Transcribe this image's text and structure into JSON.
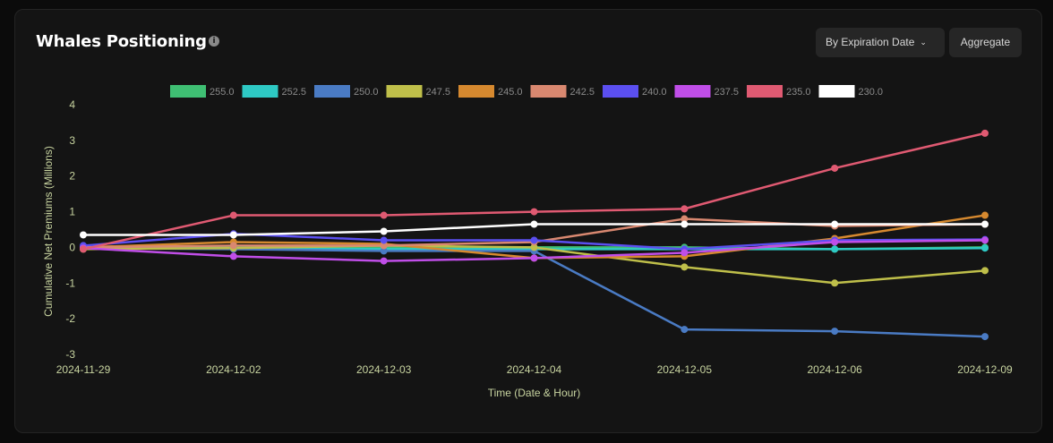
{
  "header": {
    "title": "Whales Positioning",
    "info_icon": "i",
    "expiry_button": "By Expiration Date",
    "expiry_chevron": "⌄",
    "aggregate_button": "Aggregate"
  },
  "colors": {
    "background": "#141414",
    "axis_text": "#c8d4a0",
    "legend_text": "#8a8a8a"
  },
  "chart_data": {
    "type": "line",
    "title": "",
    "xlabel": "Time (Date & Hour)",
    "ylabel": "Cumulative Net Premiums (Millions)",
    "ylim": [
      -3,
      4
    ],
    "yticks": [
      "4",
      "3",
      "2",
      "1",
      "0",
      "-1",
      "-2",
      "-3"
    ],
    "x": [
      "2024-11-29",
      "2024-12-02",
      "2024-12-03",
      "2024-12-04",
      "2024-12-05",
      "2024-12-06",
      "2024-12-09"
    ],
    "legend_position": "top",
    "grid": false,
    "series": [
      {
        "name": "255.0",
        "color": "#3fbf73",
        "values": [
          0,
          0,
          0,
          0,
          0,
          -0.05,
          0
        ]
      },
      {
        "name": "252.5",
        "color": "#2ec9c4",
        "values": [
          0,
          -0.02,
          -0.05,
          -0.05,
          -0.05,
          -0.05,
          -0.02
        ]
      },
      {
        "name": "250.0",
        "color": "#4a7bc4",
        "values": [
          -0.02,
          -0.05,
          -0.1,
          -0.1,
          -2.3,
          -2.35,
          -2.5
        ]
      },
      {
        "name": "247.5",
        "color": "#bfbf4a",
        "values": [
          -0.05,
          -0.02,
          0.05,
          0,
          -0.55,
          -1.0,
          -0.65
        ]
      },
      {
        "name": "245.0",
        "color": "#d6892f",
        "values": [
          0,
          0.15,
          0.1,
          -0.3,
          -0.25,
          0.25,
          0.9
        ]
      },
      {
        "name": "242.5",
        "color": "#d98870",
        "values": [
          0,
          0.05,
          0.05,
          0.15,
          0.8,
          0.6,
          0.65
        ]
      },
      {
        "name": "240.0",
        "color": "#5b4ff0",
        "values": [
          0.05,
          0.38,
          0.2,
          0.2,
          -0.05,
          0.2,
          0.22
        ]
      },
      {
        "name": "237.5",
        "color": "#c04ee8",
        "values": [
          -0.02,
          -0.25,
          -0.38,
          -0.3,
          -0.15,
          0.15,
          0.2
        ]
      },
      {
        "name": "235.0",
        "color": "#e05a72",
        "values": [
          -0.05,
          0.9,
          0.9,
          1.0,
          1.08,
          2.22,
          3.2
        ]
      },
      {
        "name": "230.0",
        "color": "#ffffff",
        "values": [
          0.35,
          0.35,
          0.45,
          0.65,
          0.65,
          0.65,
          0.65
        ]
      }
    ]
  }
}
